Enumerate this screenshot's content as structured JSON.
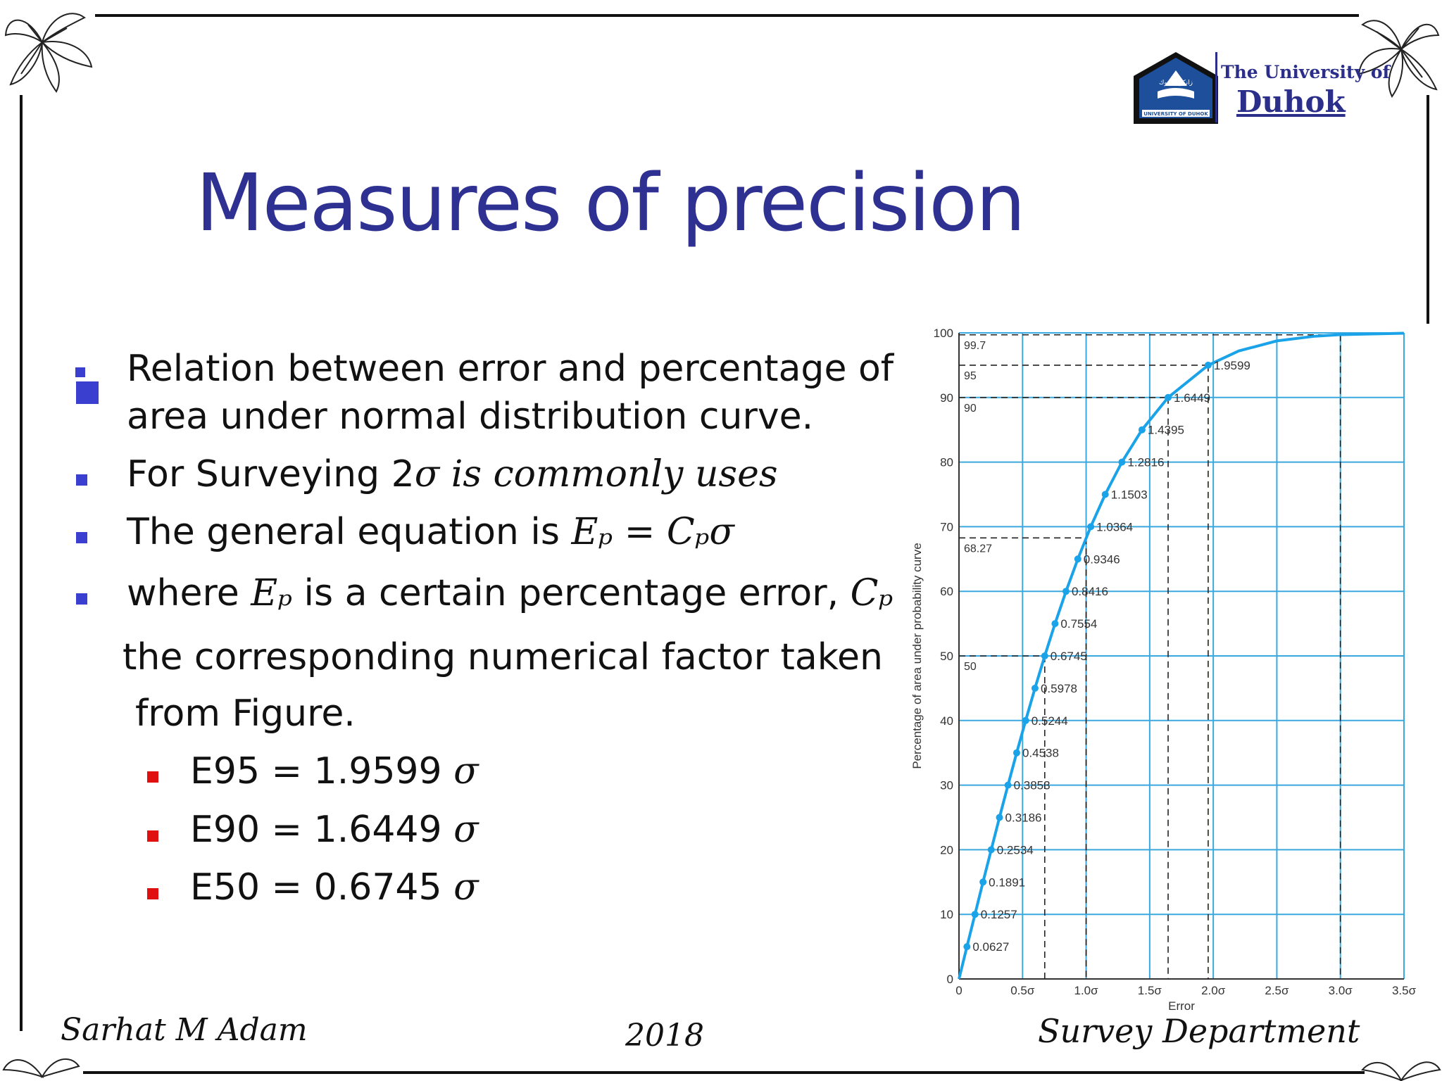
{
  "university": {
    "name_line1": "The University of",
    "name_line2": "Duhok",
    "logo_band_text": "UNIVERSITY OF DUHOK",
    "logo_script": "زانكويا دهوك"
  },
  "title": "Measures of precision",
  "bullets": [
    {
      "line1": "Relation between error and percentage of",
      "line2": "area under normal distribution curve."
    },
    {
      "text": "For Surveying 2",
      "math": "σ is commonly uses"
    },
    {
      "text": "The general equation is ",
      "math": "Eₚ = Cₚσ"
    },
    {
      "text_a": "where ",
      "math_a": "Eₚ",
      "text_b": " is a certain percentage error, ",
      "math_b": "Cₚ",
      "line2": "the corresponding numerical factor taken",
      "line3": "from Figure."
    }
  ],
  "sub_bullets": [
    {
      "text": "E95 = 1.9599 ",
      "math": "σ"
    },
    {
      "text": "E90 = 1.6449 ",
      "math": "σ"
    },
    {
      "text": "E50 = 0.6745 ",
      "math": "σ"
    }
  ],
  "footer": {
    "author": "Sarhat M Adam",
    "year": "2018",
    "department": "Survey Department"
  },
  "colors": {
    "title": "#2e3192",
    "bullet_blue": "#3a3fd0",
    "bullet_red": "#e01010",
    "curve": "#1aa3e8",
    "grid": "#3aa9e0"
  },
  "chart_data": {
    "type": "line",
    "xlabel": "Error",
    "ylabel": "Percentage of area under probability curve",
    "xlim": [
      0,
      3.5
    ],
    "ylim": [
      0,
      100
    ],
    "x_tick_labels": [
      "0",
      "0.5σ",
      "1.0σ",
      "1.5σ",
      "2.0σ",
      "2.5σ",
      "3.0σ",
      "3.5σ"
    ],
    "y_tick_labels": [
      "0",
      "10",
      "20",
      "30",
      "40",
      "50",
      "60",
      "70",
      "80",
      "90",
      "100"
    ],
    "grid": true,
    "points": [
      {
        "x": 0.0627,
        "y": 5
      },
      {
        "x": 0.1257,
        "y": 10
      },
      {
        "x": 0.1891,
        "y": 15
      },
      {
        "x": 0.2534,
        "y": 20
      },
      {
        "x": 0.3186,
        "y": 25
      },
      {
        "x": 0.3853,
        "y": 30
      },
      {
        "x": 0.4538,
        "y": 35
      },
      {
        "x": 0.5244,
        "y": 40
      },
      {
        "x": 0.5978,
        "y": 45
      },
      {
        "x": 0.6745,
        "y": 50
      },
      {
        "x": 0.7554,
        "y": 55
      },
      {
        "x": 0.8416,
        "y": 60
      },
      {
        "x": 0.9346,
        "y": 65
      },
      {
        "x": 1.0364,
        "y": 70
      },
      {
        "x": 1.1503,
        "y": 75
      },
      {
        "x": 1.2816,
        "y": 80
      },
      {
        "x": 1.4395,
        "y": 85
      },
      {
        "x": 1.6449,
        "y": 90
      },
      {
        "x": 1.9599,
        "y": 95
      }
    ],
    "point_labels": [
      "0.0627",
      "0.1257",
      "0.1891",
      "0.2534",
      "0.3186",
      "0.3853",
      "0.4538",
      "0.5244",
      "0.5978",
      "0.6745",
      "0.7554",
      "0.8416",
      "0.9346",
      "1.0364",
      "1.1503",
      "1.2816",
      "1.4395",
      "1.6449",
      "1.9599"
    ],
    "curve_extension": [
      {
        "x": 2.2,
        "y": 97.2
      },
      {
        "x": 2.5,
        "y": 98.76
      },
      {
        "x": 2.8,
        "y": 99.49
      },
      {
        "x": 3.0,
        "y": 99.73
      },
      {
        "x": 3.5,
        "y": 99.95
      }
    ],
    "reference_lines": [
      {
        "x": 3.0,
        "y": 99.7,
        "label": "99.7"
      },
      {
        "x": 1.9599,
        "y": 95,
        "label": "95"
      },
      {
        "x": 1.6449,
        "y": 90,
        "label": "90"
      },
      {
        "x": 1.0,
        "y": 68.27,
        "label": "68.27"
      },
      {
        "x": 0.6745,
        "y": 50,
        "label": "50"
      }
    ]
  }
}
